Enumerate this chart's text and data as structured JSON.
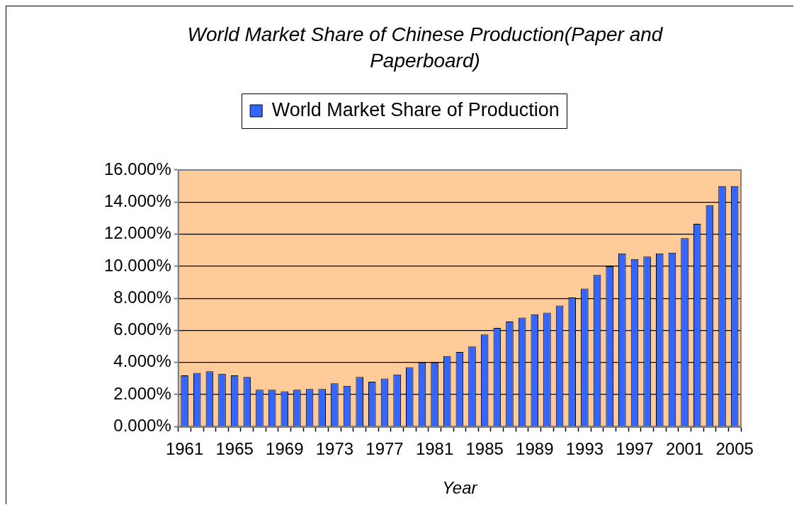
{
  "chart_data": {
    "type": "bar",
    "title": "World Market Share of Chinese Production(Paper and Paperboard)",
    "xlabel": "Year",
    "categories": [
      "1961",
      null,
      null,
      null,
      "1965",
      null,
      null,
      null,
      "1969",
      null,
      null,
      null,
      "1973",
      null,
      null,
      null,
      "1977",
      null,
      null,
      null,
      "1981",
      null,
      null,
      null,
      "1985",
      null,
      null,
      null,
      "1989",
      null,
      null,
      null,
      "1993",
      null,
      null,
      null,
      "1997",
      null,
      null,
      null,
      "2001",
      null,
      null,
      null,
      "2005"
    ],
    "series": [
      {
        "name": "World Market Share of Production",
        "color": "#3366ff",
        "values": [
          3.2,
          3.35,
          3.45,
          3.3,
          3.2,
          3.1,
          2.3,
          2.3,
          2.2,
          2.3,
          2.35,
          2.35,
          2.7,
          2.55,
          3.1,
          2.8,
          3.0,
          3.25,
          3.7,
          4.0,
          4.0,
          4.4,
          4.65,
          5.0,
          5.75,
          6.15,
          6.55,
          6.8,
          7.0,
          7.1,
          7.55,
          8.05,
          8.6,
          9.45,
          10.0,
          10.8,
          10.45,
          10.6,
          10.8,
          10.85,
          11.75,
          12.65,
          13.8,
          15.0,
          15.0
        ]
      }
    ],
    "ylim": [
      0,
      16
    ],
    "yticks": [
      {
        "value": 0,
        "label": "0.000%"
      },
      {
        "value": 2,
        "label": "2.000%"
      },
      {
        "value": 4,
        "label": "4.000%"
      },
      {
        "value": 6,
        "label": "6.000%"
      },
      {
        "value": 8,
        "label": "8.000%"
      },
      {
        "value": 10,
        "label": "10.000%"
      },
      {
        "value": 12,
        "label": "12.000%"
      },
      {
        "value": 14,
        "label": "14.000%"
      },
      {
        "value": 16,
        "label": "16.000%"
      }
    ],
    "grid": "y",
    "legend": "top"
  }
}
